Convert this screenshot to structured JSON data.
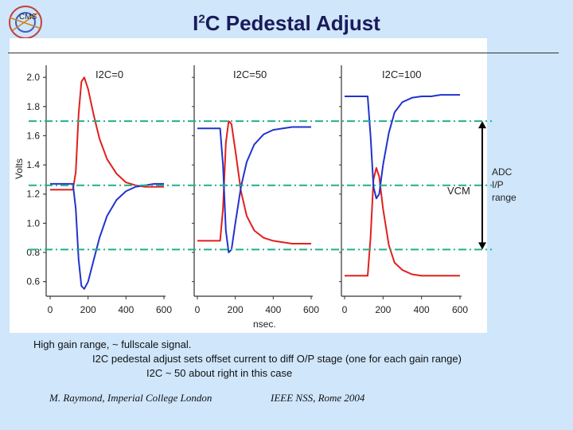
{
  "header": {
    "title_main": "I",
    "title_sup": "2",
    "title_rest": "C Pedestal Adjust"
  },
  "colors": {
    "red": "#e0201f",
    "blue": "#2233cc",
    "dash": "#22b08a",
    "axis": "#333333"
  },
  "chart_data": {
    "type": "line",
    "ylabel": "Volts",
    "xlabel": "nsec.",
    "ylim": [
      0.5,
      2.05
    ],
    "xlim": [
      0,
      600
    ],
    "y_ticks": [
      "2.0",
      "1.8",
      "1.6",
      "1.4",
      "1.2",
      "1.0",
      "0.8",
      "0.6"
    ],
    "x_ticks": [
      "0",
      "200",
      "400",
      "600"
    ],
    "reference_lines": [
      {
        "y": 1.7
      },
      {
        "y": 1.26,
        "label": "VCM"
      },
      {
        "y": 0.82
      }
    ],
    "range_annotation": {
      "from": 0.82,
      "to": 1.7,
      "label_lines": [
        "ADC",
        "I/P",
        "range"
      ]
    },
    "panels": [
      {
        "label": "I2C=0",
        "series": [
          {
            "color": "red",
            "x": [
              0,
              120,
              135,
              150,
              165,
              180,
              200,
              230,
              260,
              300,
              350,
              400,
              450,
              500,
              550,
              600
            ],
            "y": [
              1.23,
              1.23,
              1.35,
              1.75,
              1.97,
              2.0,
              1.92,
              1.74,
              1.58,
              1.44,
              1.34,
              1.28,
              1.26,
              1.25,
              1.25,
              1.25
            ]
          },
          {
            "color": "blue",
            "x": [
              0,
              120,
              135,
              150,
              165,
              180,
              200,
              230,
              260,
              300,
              350,
              400,
              450,
              500,
              550,
              600
            ],
            "y": [
              1.27,
              1.27,
              1.1,
              0.75,
              0.57,
              0.55,
              0.6,
              0.75,
              0.9,
              1.05,
              1.16,
              1.22,
              1.25,
              1.26,
              1.27,
              1.27
            ]
          }
        ]
      },
      {
        "label": "I2C=50",
        "series": [
          {
            "color": "red",
            "x": [
              0,
              120,
              135,
              150,
              165,
              180,
              200,
              230,
              260,
              300,
              350,
              400,
              450,
              500,
              550,
              600
            ],
            "y": [
              0.88,
              0.88,
              1.1,
              1.55,
              1.7,
              1.68,
              1.5,
              1.22,
              1.05,
              0.95,
              0.9,
              0.88,
              0.87,
              0.86,
              0.86,
              0.86
            ]
          },
          {
            "color": "blue",
            "x": [
              0,
              120,
              135,
              150,
              165,
              180,
              200,
              230,
              260,
              300,
              350,
              400,
              450,
              500,
              550,
              600
            ],
            "y": [
              1.65,
              1.65,
              1.4,
              0.95,
              0.8,
              0.82,
              1.0,
              1.25,
              1.42,
              1.54,
              1.61,
              1.64,
              1.65,
              1.66,
              1.66,
              1.66
            ]
          }
        ]
      },
      {
        "label": "I2C=100",
        "series": [
          {
            "color": "red",
            "x": [
              0,
              120,
              135,
              150,
              165,
              180,
              200,
              230,
              260,
              300,
              350,
              400,
              450,
              500,
              550,
              600
            ],
            "y": [
              0.64,
              0.64,
              0.9,
              1.3,
              1.38,
              1.32,
              1.1,
              0.85,
              0.73,
              0.68,
              0.65,
              0.64,
              0.64,
              0.64,
              0.64,
              0.64
            ]
          },
          {
            "color": "blue",
            "x": [
              0,
              120,
              135,
              150,
              165,
              180,
              200,
              230,
              260,
              300,
              350,
              400,
              450,
              500,
              550,
              600
            ],
            "y": [
              1.87,
              1.87,
              1.6,
              1.25,
              1.17,
              1.2,
              1.4,
              1.62,
              1.76,
              1.83,
              1.86,
              1.87,
              1.87,
              1.88,
              1.88,
              1.88
            ]
          }
        ]
      }
    ]
  },
  "captions": {
    "line1": "High gain range, ~ fullscale signal.",
    "line2": "I2C pedestal adjust sets offset current to diff O/P stage (one for each gain range)",
    "line3": "I2C ~ 50 about right in this case"
  },
  "footer": {
    "author": "M. Raymond, Imperial College London",
    "conference": "IEEE NSS, Rome 2004"
  }
}
